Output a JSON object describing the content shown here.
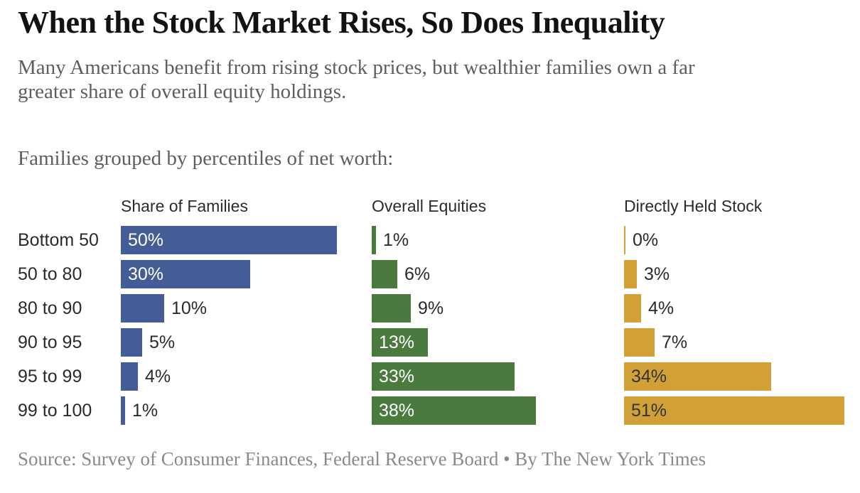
{
  "header": {
    "title": "When the Stock Market Rises, So Does Inequality",
    "subtitle": "Many Americans benefit from rising stock prices, but wealthier families own a far\ngreater share of overall equity holdings.",
    "grouping_note": "Families grouped by percentiles of net worth:"
  },
  "chart_data": {
    "type": "bar",
    "orientation": "horizontal",
    "categories": [
      "Bottom 50",
      "50 to 80",
      "80 to 90",
      "90 to 95",
      "95 to 99",
      "99 to 100"
    ],
    "series": [
      {
        "name": "Share of Families",
        "color": "#455d96",
        "inside_label_color": "#ffffff",
        "values": [
          50,
          30,
          10,
          5,
          4,
          1
        ]
      },
      {
        "name": "Overall Equities",
        "color": "#4a7a3e",
        "inside_label_color": "#ffffff",
        "values": [
          1,
          6,
          9,
          13,
          33,
          38
        ]
      },
      {
        "name": "Directly Held Stock",
        "color": "#d1a137",
        "inside_label_color": "#333333",
        "values": [
          0,
          3,
          4,
          7,
          34,
          51
        ]
      }
    ],
    "value_suffix": "%",
    "xlim": [
      0,
      51
    ],
    "grid": false,
    "legend": "column-headers",
    "outside_label_color": "#2b2b2b"
  },
  "footer": {
    "source": "Source: Survey of Consumer Finances, Federal Reserve Board • By The New York Times"
  }
}
